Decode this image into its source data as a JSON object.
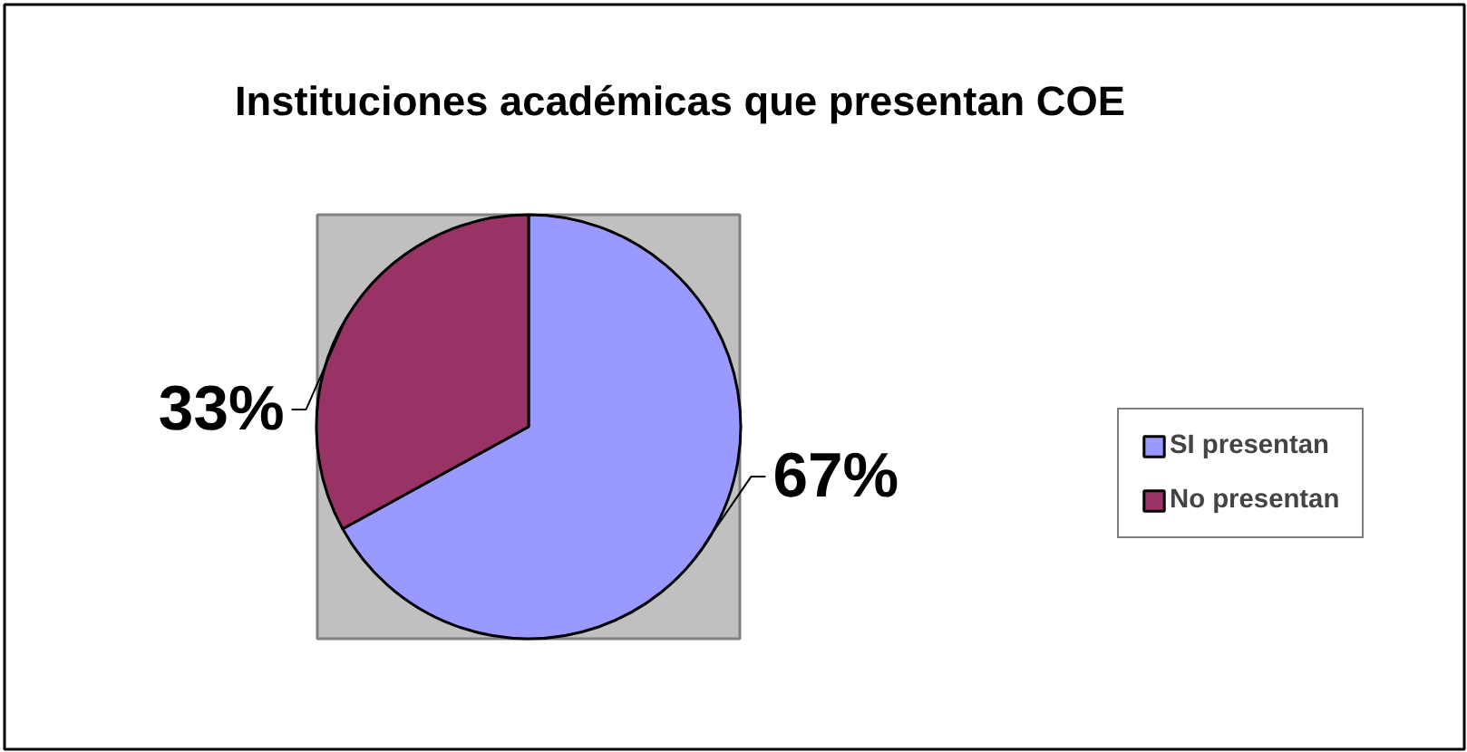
{
  "chart_data": {
    "type": "pie",
    "title": "Instituciones académicas que presentan COE",
    "categories": [
      "SI presentan",
      "No presentan"
    ],
    "values": [
      67,
      33
    ],
    "colors": [
      "#9999ff",
      "#993366"
    ],
    "value_labels": [
      "67%",
      "33%"
    ],
    "legend": "right"
  }
}
